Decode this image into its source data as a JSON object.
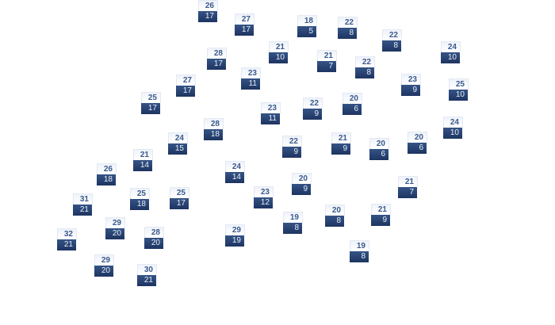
{
  "colors": {
    "high_bg": "#eef2fa",
    "high_text": "#3b5a8c",
    "low_bg": "#263f70",
    "low_text": "#e8eef8"
  },
  "markers": [
    {
      "high": "26",
      "low": "17"
    },
    {
      "high": "27",
      "low": "17"
    },
    {
      "high": "18",
      "low": "5"
    },
    {
      "high": "22",
      "low": "8"
    },
    {
      "high": "22",
      "low": "8"
    },
    {
      "high": "24",
      "low": "10"
    },
    {
      "high": "28",
      "low": "17"
    },
    {
      "high": "21",
      "low": "10"
    },
    {
      "high": "21",
      "low": "7"
    },
    {
      "high": "22",
      "low": "8"
    },
    {
      "high": "23",
      "low": "11"
    },
    {
      "high": "27",
      "low": "17"
    },
    {
      "high": "23",
      "low": "9"
    },
    {
      "high": "25",
      "low": "10"
    },
    {
      "high": "25",
      "low": "17"
    },
    {
      "high": "23",
      "low": "11"
    },
    {
      "high": "22",
      "low": "9"
    },
    {
      "high": "20",
      "low": "6"
    },
    {
      "high": "28",
      "low": "18"
    },
    {
      "high": "24",
      "low": "10"
    },
    {
      "high": "24",
      "low": "15"
    },
    {
      "high": "22",
      "low": "9"
    },
    {
      "high": "21",
      "low": "9"
    },
    {
      "high": "20",
      "low": "6"
    },
    {
      "high": "20",
      "low": "6"
    },
    {
      "high": "21",
      "low": "14"
    },
    {
      "high": "26",
      "low": "18"
    },
    {
      "high": "24",
      "low": "14"
    },
    {
      "high": "20",
      "low": "9"
    },
    {
      "high": "21",
      "low": "7"
    },
    {
      "high": "25",
      "low": "18"
    },
    {
      "high": "25",
      "low": "17"
    },
    {
      "high": "23",
      "low": "12"
    },
    {
      "high": "31",
      "low": "21"
    },
    {
      "high": "19",
      "low": "8"
    },
    {
      "high": "20",
      "low": "8"
    },
    {
      "high": "21",
      "low": "9"
    },
    {
      "high": "29",
      "low": "20"
    },
    {
      "high": "28",
      "low": "20"
    },
    {
      "high": "29",
      "low": "19"
    },
    {
      "high": "32",
      "low": "21"
    },
    {
      "high": "19",
      "low": "8"
    },
    {
      "high": "29",
      "low": "20"
    },
    {
      "high": "30",
      "low": "21"
    }
  ]
}
